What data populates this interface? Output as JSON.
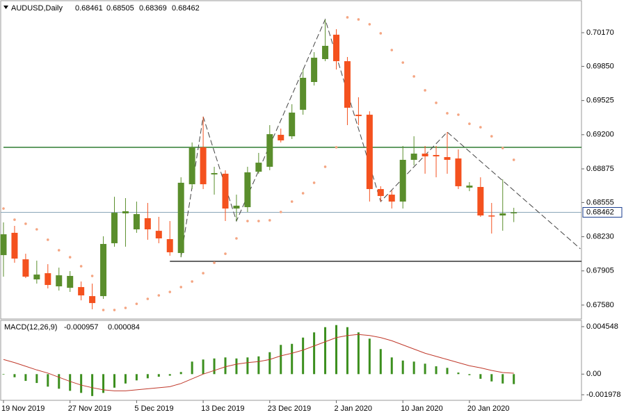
{
  "chart_data": [
    {
      "type": "candlestick",
      "title": "AUDUSD,Daily",
      "categories": [
        "19 Nov 2019",
        null,
        null,
        null,
        null,
        null,
        "27 Nov 2019",
        null,
        null,
        null,
        null,
        null,
        "5 Dec 2019",
        null,
        null,
        null,
        null,
        null,
        "13 Dec 2019",
        null,
        null,
        null,
        null,
        null,
        "23 Dec 2019",
        null,
        null,
        null,
        null,
        null,
        "2 Jan 2020",
        null,
        null,
        null,
        null,
        null,
        "10 Jan 2020",
        null,
        null,
        null,
        null,
        null,
        "20 Jan 2020",
        null,
        null,
        null,
        null
      ],
      "open": [
        0.68055,
        0.68267,
        0.68015,
        0.67824,
        0.67883,
        0.67758,
        0.67744,
        0.67751,
        0.67665,
        0.67665,
        0.68168,
        0.68452,
        0.683,
        0.68406,
        0.68286,
        0.68207,
        0.68075,
        0.68729,
        0.6908,
        0.68822,
        0.68829,
        0.68498,
        0.68511,
        0.68848,
        0.68895,
        0.69199,
        0.69185,
        0.69437,
        0.69701,
        0.69919,
        0.70151,
        0.69899,
        0.6939,
        0.6939,
        0.68683,
        0.6863,
        0.68564,
        0.68961,
        0.6902,
        0.69007,
        0.68987,
        0.68974,
        0.68697,
        0.68703,
        0.68432,
        0.68432,
        0.68461
      ],
      "high": [
        0.68366,
        0.68333,
        0.68068,
        0.68002,
        0.67969,
        0.67936,
        0.67903,
        0.67804,
        0.67784,
        0.68234,
        0.6861,
        0.68597,
        0.68564,
        0.68551,
        0.68419,
        0.68379,
        0.68795,
        0.69126,
        0.69371,
        0.68895,
        0.68862,
        0.6863,
        0.68895,
        0.69027,
        0.69291,
        0.69258,
        0.6949,
        0.6982,
        0.69985,
        0.70296,
        0.70203,
        0.69939,
        0.69556,
        0.69423,
        0.6871,
        0.6867,
        0.69093,
        0.69185,
        0.69093,
        0.69093,
        0.69225,
        0.6906,
        0.68749,
        0.68795,
        0.68551,
        0.68775,
        0.68505
      ],
      "low": [
        0.6785,
        0.67982,
        0.67837,
        0.67784,
        0.67738,
        0.67718,
        0.67705,
        0.67625,
        0.6754,
        0.67639,
        0.68135,
        0.68135,
        0.68267,
        0.68201,
        0.68168,
        0.68049,
        0.68035,
        0.68683,
        0.68683,
        0.6863,
        0.68379,
        0.68379,
        0.68465,
        0.68829,
        0.68862,
        0.69126,
        0.69159,
        0.6939,
        0.69668,
        0.69899,
        0.6982,
        0.69291,
        0.69291,
        0.68564,
        0.68564,
        0.68498,
        0.68498,
        0.68908,
        0.68829,
        0.68795,
        0.68829,
        0.68683,
        0.68663,
        0.68419,
        0.6826,
        0.68287,
        0.68369
      ],
      "close": [
        0.68253,
        0.68022,
        0.6785,
        0.6787,
        0.67771,
        0.67863,
        0.67857,
        0.67672,
        0.67599,
        0.68161,
        0.68458,
        0.68472,
        0.68445,
        0.683,
        0.68214,
        0.68082,
        0.68743,
        0.6908,
        0.68729,
        0.68835,
        0.68498,
        0.68525,
        0.68842,
        0.68934,
        0.69205,
        0.69146,
        0.6941,
        0.69741,
        0.69932,
        0.70045,
        0.69899,
        0.69456,
        0.69377,
        0.68683,
        0.68617,
        0.68564,
        0.68961,
        0.6902,
        0.68994,
        0.68994,
        0.68961,
        0.6871,
        0.68716,
        0.68432,
        0.68425,
        0.68452,
        0.68462
      ],
      "up_color": "#5a8e2c",
      "down_color": "#f4511e",
      "price_line_color": "#8aa6b8",
      "ylim": [
        0.67454,
        0.70461
      ],
      "yticks": [
        {
          "value": 0.7017,
          "label": "0.70170"
        },
        {
          "value": 0.6985,
          "label": "0.69850"
        },
        0.69525,
        {
          "value": 0.692,
          "label": "0.69200"
        },
        0.68875,
        0.68555,
        {
          "value": 0.6823,
          "label": "0.68230"
        },
        0.67905,
        {
          "value": 0.6758,
          "label": "0.67580"
        }
      ],
      "sar": {
        "color": "#f4a582",
        "values": [
          0.68498,
          0.68392,
          0.68353,
          0.683,
          0.68201,
          0.68101,
          0.68035,
          0.67949,
          0.67857,
          0.67533,
          0.67533,
          0.67553,
          0.67592,
          0.67639,
          0.67672,
          0.67705,
          0.67751,
          0.67804,
          0.67883,
          0.67982,
          0.68068,
          0.68214,
          0.68379,
          0.68379,
          0.68386,
          0.68465,
          0.68564,
          0.68643,
          0.68743,
          0.68895,
          0.6908,
          0.70316,
          0.70296,
          0.7025,
          0.70164,
          0.70005,
          0.69886,
          0.69754,
          0.69622,
          0.69503,
          0.69404,
          0.6939,
          0.69304,
          0.69271,
          0.69185,
          0.69073,
          0.68961
        ]
      },
      "hlines": [
        {
          "value": 0.6908,
          "color": "#2e7d32",
          "x_start": 0
        },
        {
          "value": 0.67996,
          "color": "#333333",
          "x_start": 15
        }
      ],
      "zigzag": {
        "color": "#444444",
        "x": [
          16,
          18,
          21,
          29,
          34,
          40,
          52
        ],
        "y": [
          0.68035,
          0.69371,
          0.68379,
          0.70296,
          0.68564,
          0.69225,
          0.68115
        ]
      }
    },
    {
      "type": "macd",
      "title": "MACD(12,26,9)",
      "histogram": {
        "color": "#3c8f1e",
        "values": [
          -5e-05,
          -0.0003,
          -0.00065,
          -0.00085,
          -0.0012,
          -0.0014,
          -0.0016,
          -0.0018,
          -0.0021,
          -0.0018,
          -0.0013,
          -0.0009,
          -0.0006,
          -0.0004,
          -0.00025,
          -0.00015,
          0.0002,
          0.0012,
          0.0014,
          0.0015,
          0.0016,
          0.0015,
          0.0016,
          0.0017,
          0.0021,
          0.0028,
          0.0029,
          0.0035,
          0.004,
          0.0045,
          0.0047,
          0.0045,
          0.004,
          0.0034,
          0.0024,
          0.0016,
          0.0013,
          0.0012,
          0.001,
          0.00075,
          0.0006,
          0.00015,
          -0.0001,
          -0.00045,
          -0.0007,
          -0.0009,
          -0.000957
        ]
      },
      "signal": {
        "color": "#c0392b",
        "values": [
          0.0014,
          0.0011,
          0.00075,
          0.0004,
          0.0001,
          -0.0003,
          -0.0007,
          -0.00105,
          -0.0013,
          -0.0015,
          -0.0016,
          -0.0016,
          -0.0015,
          -0.0014,
          -0.0013,
          -0.0012,
          -0.0009,
          -0.00045,
          0.0,
          0.00035,
          0.0007,
          0.00095,
          0.0011,
          0.0012,
          0.0014,
          0.00175,
          0.002,
          0.0023,
          0.0027,
          0.0031,
          0.0035,
          0.0037,
          0.0038,
          0.0037,
          0.0035,
          0.0032,
          0.0028,
          0.0024,
          0.002,
          0.0017,
          0.0014,
          0.0011,
          0.0008,
          0.0006,
          0.00035,
          0.00015,
          8.4e-05
        ]
      },
      "ylim": [
        -0.002444,
        0.005081
      ],
      "yticks": [
        0.004548,
        {
          "value": 0,
          "label": "0.00"
        },
        -0.001978
      ]
    }
  ]
}
